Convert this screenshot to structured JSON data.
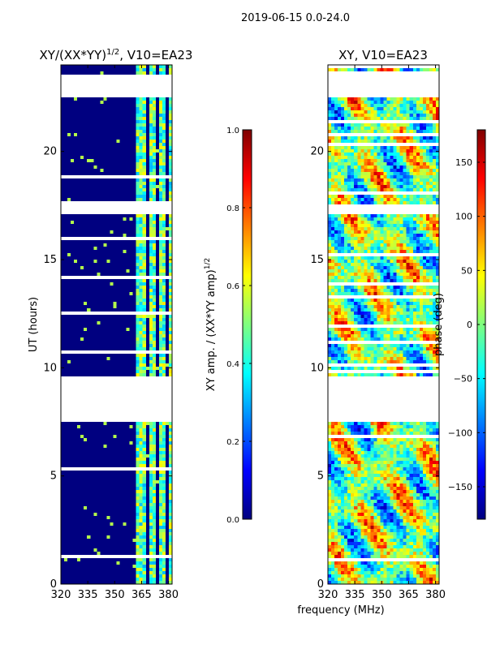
{
  "suptitle": "2019-06-15 0.0-24.0",
  "colors": {
    "jet": [
      "#00007f",
      "#0000ff",
      "#007fff",
      "#00ffff",
      "#7fff7f",
      "#ffff00",
      "#ff7f00",
      "#ff0000",
      "#7f0000"
    ]
  },
  "chart_data": [
    {
      "type": "heatmap",
      "title_main": "XY/(XX*YY)",
      "title_sup": "1/2",
      "title_tail": ", V10=EA23",
      "xlabel": "",
      "ylabel": "UT (hours)",
      "xlim": [
        320,
        382
      ],
      "ylim": [
        0,
        24
      ],
      "xticks": [
        320,
        335,
        350,
        365,
        380
      ],
      "yticks": [
        0,
        5,
        10,
        15,
        20
      ],
      "gaps_hours": [
        [
          22.45,
          23.45
        ],
        [
          17.05,
          17.6
        ],
        [
          7.5,
          9.6
        ]
      ],
      "bright_channels_mhz": [
        [
          362.5,
          366.5
        ],
        [
          369.5,
          372.0
        ],
        [
          375.5,
          377.5
        ],
        [
          380.0,
          381.5
        ]
      ],
      "colorbar": {
        "label_main": "XY amp. / (XX*YY amp)",
        "label_sup": "1/2",
        "range": [
          0.0,
          1.0
        ],
        "ticks": [
          "0.0",
          "0.2",
          "0.4",
          "0.6",
          "0.8",
          "1.0"
        ]
      }
    },
    {
      "type": "heatmap",
      "title_main": "XY, V10=EA23",
      "title_sup": "",
      "title_tail": "",
      "xlabel": "frequency (MHz)",
      "ylabel": "",
      "xlim": [
        320,
        382
      ],
      "ylim": [
        0,
        24
      ],
      "xticks": [
        320,
        335,
        350,
        365,
        380
      ],
      "yticks": [
        0,
        5,
        10,
        15,
        20
      ],
      "gaps_hours": [
        [
          22.45,
          23.45
        ],
        [
          17.05,
          17.6
        ],
        [
          7.5,
          9.6
        ]
      ],
      "colorbar": {
        "label_main": "phase (deg)",
        "label_sup": "",
        "range": [
          -180,
          180
        ],
        "ticks": [
          "−150",
          "−100",
          "−50",
          "0",
          "50",
          "100",
          "150"
        ]
      }
    }
  ]
}
